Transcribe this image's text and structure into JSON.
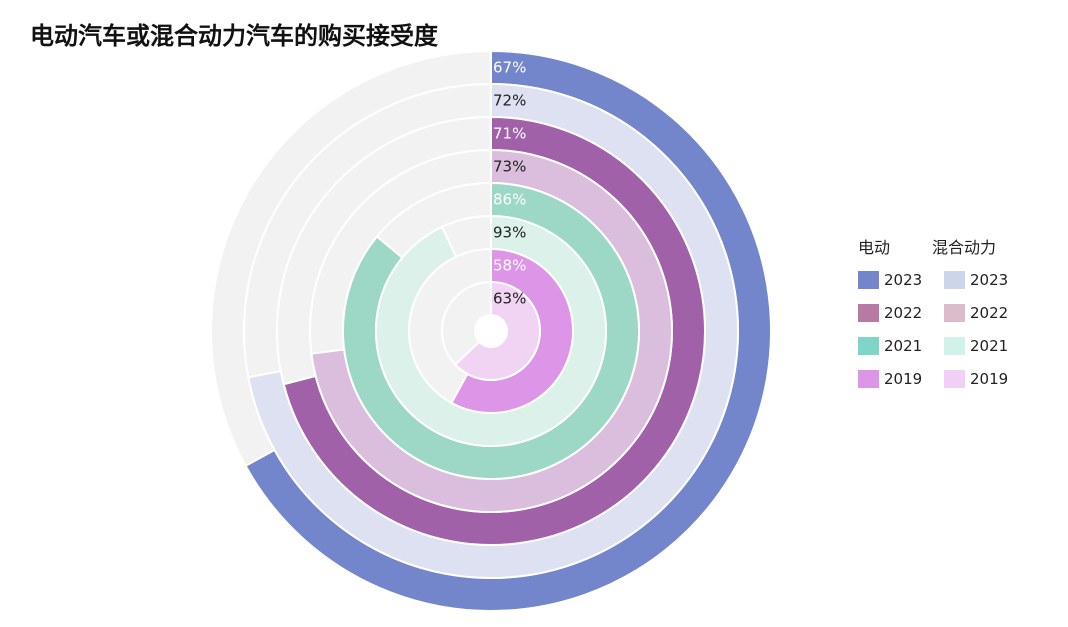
{
  "chart_data": {
    "type": "radial_bar",
    "title": "电动汽车或混合动力汽车的购买接受度",
    "legend": {
      "placement": "right",
      "groups": [
        {
          "name": "电动",
          "items": [
            "2023",
            "2022",
            "2021",
            "2019"
          ]
        },
        {
          "name": "混合动力",
          "items": [
            "2023",
            "2022",
            "2021",
            "2019"
          ]
        }
      ]
    },
    "rings": [
      {
        "group": "电动",
        "year": "2023",
        "value": 67,
        "label": "67%",
        "color": "#7385cb"
      },
      {
        "group": "混合动力",
        "year": "2023",
        "value": 72,
        "label": "72%",
        "color": "#dde1f1"
      },
      {
        "group": "电动",
        "year": "2022",
        "value": 71,
        "label": "71%",
        "color": "#a061a8"
      },
      {
        "group": "混合动力",
        "year": "2022",
        "value": 73,
        "label": "73%",
        "color": "#dbbedd"
      },
      {
        "group": "电动",
        "year": "2021",
        "value": 86,
        "label": "86%",
        "color": "#9dd8c7"
      },
      {
        "group": "混合动力",
        "year": "2021",
        "value": 93,
        "label": "93%",
        "color": "#dbf1ea"
      },
      {
        "group": "电动",
        "year": "2019",
        "value": 58,
        "label": "58%",
        "color": "#dd95e7"
      },
      {
        "group": "混合动力",
        "year": "2019",
        "value": 63,
        "label": "63%",
        "color": "#f1d3f4"
      }
    ],
    "value_range": [
      0,
      100
    ],
    "track_color": "#f2f2f2",
    "legend_colors": {
      "电动": [
        "#7385cb",
        "#b87aa5",
        "#7fd6c8",
        "#dd95e7"
      ],
      "混合动力": [
        "#ccd5ec",
        "#dbbccc",
        "#d0f2e8",
        "#f0d0f4"
      ]
    }
  }
}
